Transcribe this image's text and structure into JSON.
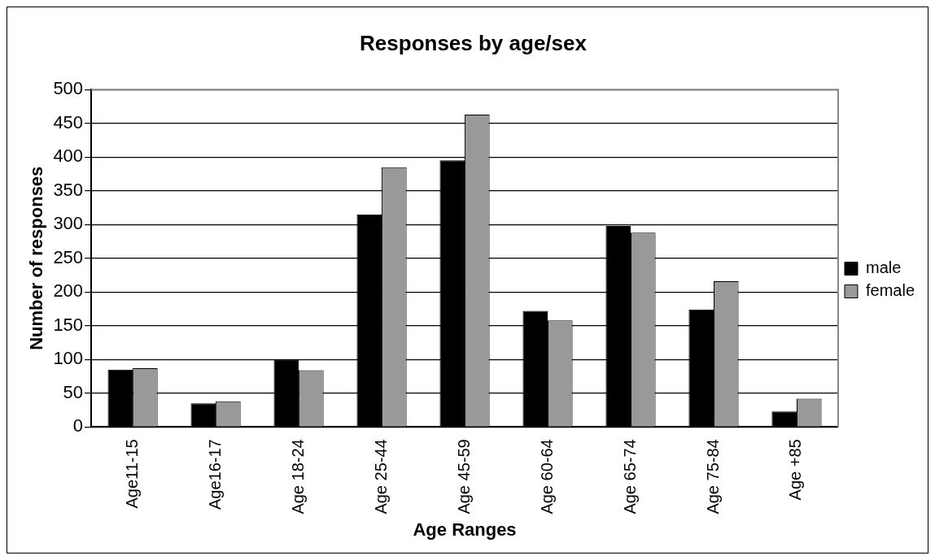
{
  "chart_data": {
    "type": "bar",
    "title": "Responses by age/sex",
    "xlabel": "Age Ranges",
    "ylabel": "Number of responses",
    "categories": [
      "Age11-15",
      "Age16-17",
      "Age 18-24",
      "Age 25-44",
      "Age 45-59",
      "Age 60-64",
      "Age 65-74",
      "Age 75-84",
      "Age +85"
    ],
    "series": [
      {
        "name": "male",
        "color": "#000000",
        "values": [
          85,
          35,
          100,
          315,
          395,
          172,
          298,
          174,
          23
        ]
      },
      {
        "name": "female",
        "color": "#999999",
        "values": [
          87,
          38,
          84,
          385,
          463,
          158,
          288,
          216,
          42
        ]
      }
    ],
    "ylim": [
      0,
      500
    ],
    "yticks": [
      0,
      50,
      100,
      150,
      200,
      250,
      300,
      350,
      400,
      450,
      500
    ],
    "grid": "y",
    "legend": "right"
  }
}
